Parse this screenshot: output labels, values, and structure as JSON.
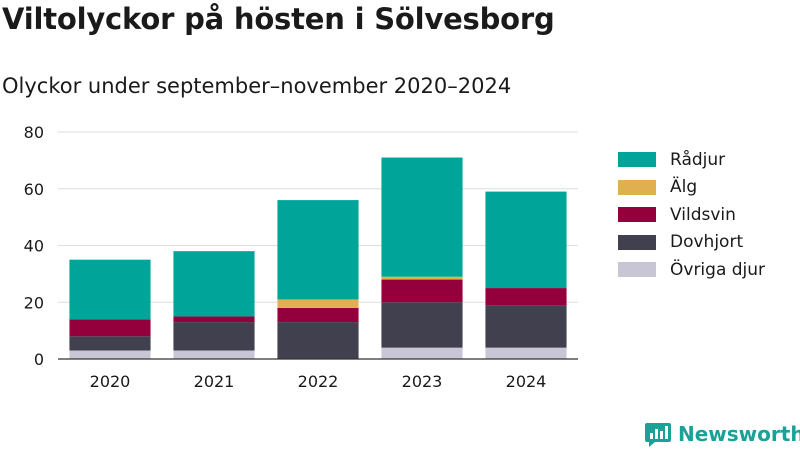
{
  "title": "Viltolyckor på hösten i Sölvesborg",
  "subtitle": "Olyckor under september–november 2020–2024",
  "brand": "Newsworthy",
  "chart_data": {
    "type": "bar",
    "stacked": true,
    "categories": [
      "2020",
      "2021",
      "2022",
      "2023",
      "2024"
    ],
    "ylim": [
      0,
      80
    ],
    "yticks": [
      0,
      20,
      40,
      60,
      80
    ],
    "grid": true,
    "legend_position": "right",
    "series": [
      {
        "name": "Övriga djur",
        "color": "#c8c6d4",
        "values": [
          3,
          3,
          0,
          4,
          4
        ]
      },
      {
        "name": "Dovhjort",
        "color": "#41404f",
        "values": [
          5,
          10,
          13,
          16,
          15
        ]
      },
      {
        "name": "Vildsvin",
        "color": "#94003c",
        "values": [
          6,
          2,
          5,
          8,
          6
        ]
      },
      {
        "name": "Älg",
        "color": "#e0b050",
        "values": [
          0,
          0,
          3,
          1,
          0
        ]
      },
      {
        "name": "Rådjur",
        "color": "#00a499",
        "values": [
          21,
          23,
          35,
          42,
          34
        ]
      }
    ]
  },
  "legend": [
    {
      "label": "Rådjur",
      "color": "#00a499"
    },
    {
      "label": "Älg",
      "color": "#e0b050"
    },
    {
      "label": "Vildsvin",
      "color": "#94003c"
    },
    {
      "label": "Dovhjort",
      "color": "#41404f"
    },
    {
      "label": "Övriga djur",
      "color": "#c8c6d4"
    }
  ]
}
